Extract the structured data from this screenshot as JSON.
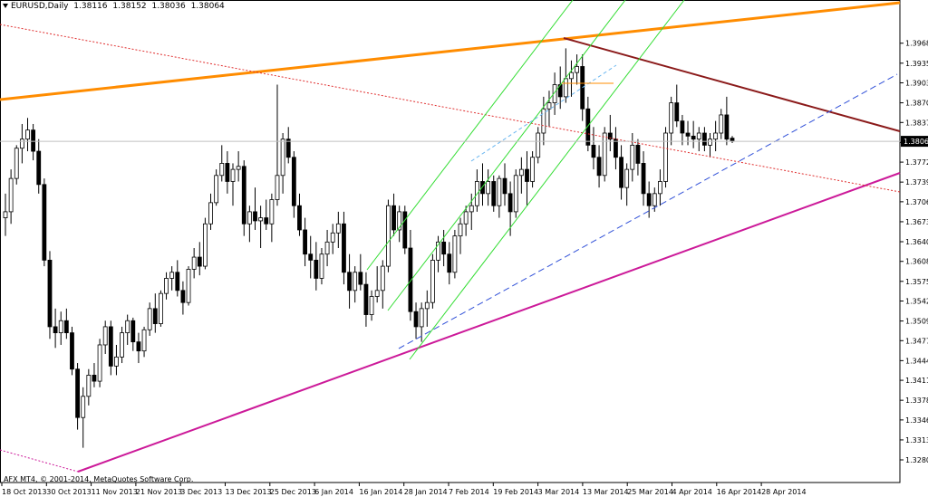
{
  "header": {
    "symbol": "EURUSD,Daily",
    "open": "1.38116",
    "high": "1.38152",
    "low": "1.38036",
    "close": "1.38064"
  },
  "copyright": "AFX MT4, © 2001-2014, MetaQuotes Software Corp.",
  "current_price_label": "1.38064",
  "colors": {
    "bull": "#ffffff",
    "bear": "#000000",
    "trend_orange": "#ff8c00",
    "trend_magenta": "#cc1a99",
    "trend_brown": "#8b1a1a",
    "dotted_red": "#e03030",
    "channel_green": "#33dd33",
    "dashed_blue": "#3050d8"
  },
  "chart_data": {
    "type": "candlestick",
    "symbol": "EURUSD",
    "timeframe": "Daily",
    "ylim": [
      1.328,
      1.3998
    ],
    "grid": false,
    "y_ticks": [
      "1.39685",
      "1.39355",
      "1.39030",
      "1.38700",
      "1.38375",
      "1.38045",
      "1.37720",
      "1.37390",
      "1.37065",
      "1.36735",
      "1.36405",
      "1.36080",
      "1.35750",
      "1.35425",
      "1.35095",
      "1.34770",
      "1.34440",
      "1.34115",
      "1.33785",
      "1.33460",
      "1.33130",
      "1.32800"
    ],
    "x_labels": [
      "18 Oct 2013",
      "30 Oct 2013",
      "11 Nov 2013",
      "21 Nov 2013",
      "3 Dec 2013",
      "13 Dec 2013",
      "25 Dec 2013",
      "6 Jan 2014",
      "16 Jan 2014",
      "28 Jan 2014",
      "7 Feb 2014",
      "19 Feb 2014",
      "3 Mar 2014",
      "13 Mar 2014",
      "25 Mar 2014",
      "4 Apr 2014",
      "16 Apr 2014",
      "28 Apr 2014"
    ],
    "candles_ohlc": [
      [
        1.368,
        1.372,
        1.365,
        1.369
      ],
      [
        1.369,
        1.376,
        1.367,
        1.3745
      ],
      [
        1.3745,
        1.38,
        1.3735,
        1.3795
      ],
      [
        1.3795,
        1.3835,
        1.377,
        1.381
      ],
      [
        1.381,
        1.3845,
        1.379,
        1.3825
      ],
      [
        1.3825,
        1.3835,
        1.3775,
        1.379
      ],
      [
        1.379,
        1.381,
        1.372,
        1.3735
      ],
      [
        1.3735,
        1.3745,
        1.36,
        1.361
      ],
      [
        1.361,
        1.3625,
        1.348,
        1.35
      ],
      [
        1.35,
        1.353,
        1.3465,
        1.349
      ],
      [
        1.349,
        1.3525,
        1.347,
        1.351
      ],
      [
        1.351,
        1.353,
        1.348,
        1.349
      ],
      [
        1.349,
        1.35,
        1.342,
        1.343
      ],
      [
        1.343,
        1.344,
        1.333,
        1.335
      ],
      [
        1.335,
        1.34,
        1.33,
        1.3385
      ],
      [
        1.3385,
        1.343,
        1.337,
        1.342
      ],
      [
        1.342,
        1.344,
        1.34,
        1.341
      ],
      [
        1.341,
        1.348,
        1.34,
        1.347
      ],
      [
        1.347,
        1.351,
        1.3455,
        1.35
      ],
      [
        1.35,
        1.351,
        1.342,
        1.3435
      ],
      [
        1.3435,
        1.347,
        1.342,
        1.345
      ],
      [
        1.345,
        1.35,
        1.344,
        1.349
      ],
      [
        1.349,
        1.352,
        1.347,
        1.351
      ],
      [
        1.351,
        1.3515,
        1.346,
        1.3475
      ],
      [
        1.3475,
        1.349,
        1.344,
        1.346
      ],
      [
        1.346,
        1.35,
        1.345,
        1.3495
      ],
      [
        1.3495,
        1.354,
        1.3485,
        1.353
      ],
      [
        1.353,
        1.3555,
        1.349,
        1.3505
      ],
      [
        1.3505,
        1.356,
        1.35,
        1.3555
      ],
      [
        1.3555,
        1.359,
        1.3545,
        1.358
      ],
      [
        1.358,
        1.36,
        1.356,
        1.359
      ],
      [
        1.359,
        1.361,
        1.355,
        1.356
      ],
      [
        1.356,
        1.3575,
        1.352,
        1.354
      ],
      [
        1.354,
        1.36,
        1.3535,
        1.3595
      ],
      [
        1.3595,
        1.363,
        1.358,
        1.3615
      ],
      [
        1.3615,
        1.364,
        1.3585,
        1.36
      ],
      [
        1.36,
        1.368,
        1.3595,
        1.367
      ],
      [
        1.367,
        1.372,
        1.366,
        1.3705
      ],
      [
        1.3705,
        1.376,
        1.37,
        1.375
      ],
      [
        1.375,
        1.38,
        1.374,
        1.377
      ],
      [
        1.377,
        1.379,
        1.372,
        1.374
      ],
      [
        1.374,
        1.377,
        1.37,
        1.376
      ],
      [
        1.376,
        1.379,
        1.374,
        1.3765
      ],
      [
        1.3765,
        1.3775,
        1.365,
        1.367
      ],
      [
        1.367,
        1.37,
        1.364,
        1.369
      ],
      [
        1.369,
        1.373,
        1.366,
        1.3675
      ],
      [
        1.3675,
        1.37,
        1.363,
        1.368
      ],
      [
        1.368,
        1.371,
        1.366,
        1.367
      ],
      [
        1.367,
        1.372,
        1.364,
        1.371
      ],
      [
        1.371,
        1.39,
        1.37,
        1.375
      ],
      [
        1.375,
        1.382,
        1.372,
        1.381
      ],
      [
        1.381,
        1.383,
        1.377,
        1.378
      ],
      [
        1.378,
        1.379,
        1.368,
        1.37
      ],
      [
        1.37,
        1.372,
        1.365,
        1.366
      ],
      [
        1.366,
        1.368,
        1.36,
        1.362
      ],
      [
        1.362,
        1.365,
        1.358,
        1.361
      ],
      [
        1.361,
        1.364,
        1.356,
        1.358
      ],
      [
        1.358,
        1.363,
        1.357,
        1.362
      ],
      [
        1.362,
        1.366,
        1.36,
        1.364
      ],
      [
        1.364,
        1.367,
        1.362,
        1.3655
      ],
      [
        1.3655,
        1.369,
        1.363,
        1.367
      ],
      [
        1.367,
        1.369,
        1.357,
        1.359
      ],
      [
        1.359,
        1.362,
        1.353,
        1.356
      ],
      [
        1.356,
        1.36,
        1.354,
        1.359
      ],
      [
        1.359,
        1.362,
        1.356,
        1.357
      ],
      [
        1.357,
        1.359,
        1.35,
        1.352
      ],
      [
        1.352,
        1.356,
        1.351,
        1.355
      ],
      [
        1.355,
        1.36,
        1.354,
        1.356
      ],
      [
        1.356,
        1.361,
        1.353,
        1.36
      ],
      [
        1.36,
        1.371,
        1.359,
        1.37
      ],
      [
        1.37,
        1.372,
        1.365,
        1.366
      ],
      [
        1.366,
        1.37,
        1.364,
        1.369
      ],
      [
        1.369,
        1.37,
        1.362,
        1.363
      ],
      [
        1.363,
        1.366,
        1.351,
        1.3525
      ],
      [
        1.3525,
        1.354,
        1.348,
        1.35
      ],
      [
        1.35,
        1.354,
        1.3475,
        1.353
      ],
      [
        1.353,
        1.356,
        1.35,
        1.354
      ],
      [
        1.354,
        1.362,
        1.353,
        1.361
      ],
      [
        1.361,
        1.365,
        1.359,
        1.364
      ],
      [
        1.364,
        1.366,
        1.36,
        1.362
      ],
      [
        1.362,
        1.364,
        1.357,
        1.359
      ],
      [
        1.359,
        1.366,
        1.358,
        1.365
      ],
      [
        1.365,
        1.368,
        1.362,
        1.367
      ],
      [
        1.367,
        1.37,
        1.365,
        1.369
      ],
      [
        1.369,
        1.372,
        1.366,
        1.37
      ],
      [
        1.37,
        1.376,
        1.369,
        1.374
      ],
      [
        1.374,
        1.377,
        1.37,
        1.372
      ],
      [
        1.372,
        1.376,
        1.37,
        1.374
      ],
      [
        1.374,
        1.375,
        1.369,
        1.37
      ],
      [
        1.37,
        1.375,
        1.368,
        1.3745
      ],
      [
        1.3745,
        1.377,
        1.37,
        1.372
      ],
      [
        1.372,
        1.374,
        1.365,
        1.369
      ],
      [
        1.369,
        1.376,
        1.368,
        1.375
      ],
      [
        1.375,
        1.378,
        1.372,
        1.376
      ],
      [
        1.376,
        1.379,
        1.37,
        1.374
      ],
      [
        1.374,
        1.379,
        1.373,
        1.378
      ],
      [
        1.378,
        1.383,
        1.377,
        1.382
      ],
      [
        1.382,
        1.388,
        1.38,
        1.386
      ],
      [
        1.386,
        1.389,
        1.383,
        1.387
      ],
      [
        1.387,
        1.392,
        1.385,
        1.39
      ],
      [
        1.39,
        1.393,
        1.386,
        1.388
      ],
      [
        1.388,
        1.396,
        1.387,
        1.391
      ],
      [
        1.391,
        1.394,
        1.388,
        1.392
      ],
      [
        1.392,
        1.395,
        1.39,
        1.393
      ],
      [
        1.393,
        1.395,
        1.384,
        1.386
      ],
      [
        1.386,
        1.388,
        1.379,
        1.38
      ],
      [
        1.38,
        1.383,
        1.376,
        1.378
      ],
      [
        1.378,
        1.38,
        1.373,
        1.375
      ],
      [
        1.375,
        1.383,
        1.374,
        1.382
      ],
      [
        1.382,
        1.385,
        1.379,
        1.381
      ],
      [
        1.381,
        1.383,
        1.376,
        1.378
      ],
      [
        1.378,
        1.38,
        1.371,
        1.373
      ],
      [
        1.373,
        1.377,
        1.37,
        1.376
      ],
      [
        1.376,
        1.382,
        1.374,
        1.38
      ],
      [
        1.38,
        1.381,
        1.375,
        1.377
      ],
      [
        1.377,
        1.379,
        1.37,
        1.372
      ],
      [
        1.372,
        1.374,
        1.368,
        1.37
      ],
      [
        1.37,
        1.373,
        1.369,
        1.372
      ],
      [
        1.372,
        1.376,
        1.37,
        1.374
      ],
      [
        1.374,
        1.383,
        1.373,
        1.382
      ],
      [
        1.382,
        1.388,
        1.38,
        1.387
      ],
      [
        1.387,
        1.39,
        1.383,
        1.384
      ],
      [
        1.384,
        1.385,
        1.38,
        1.382
      ],
      [
        1.382,
        1.384,
        1.38,
        1.3815
      ],
      [
        1.3815,
        1.384,
        1.3795,
        1.381
      ],
      [
        1.381,
        1.383,
        1.379,
        1.382
      ],
      [
        1.382,
        1.383,
        1.379,
        1.38
      ],
      [
        1.38,
        1.382,
        1.378,
        1.381
      ],
      [
        1.381,
        1.384,
        1.379,
        1.382
      ],
      [
        1.382,
        1.386,
        1.381,
        1.385
      ],
      [
        1.385,
        1.388,
        1.38,
        1.381
      ],
      [
        1.38116,
        1.38152,
        1.38036,
        1.38064
      ]
    ],
    "objects": [
      {
        "kind": "trendline",
        "color": "orange",
        "from": [
          "18 Oct 2013",
          1.3855
        ],
        "to": [
          "28 Apr 2014",
          1.3985
        ]
      },
      {
        "kind": "trendline",
        "color": "magenta",
        "from": [
          "4 Nov 2013",
          1.329
        ],
        "to": [
          "28 Apr 2014",
          1.3735
        ]
      },
      {
        "kind": "trendline",
        "color": "brown",
        "from": [
          "13 Mar 2014",
          1.3945
        ],
        "to": [
          "28 Apr 2014",
          1.3805
        ]
      },
      {
        "kind": "trendline-dotted",
        "color": "red",
        "from": [
          "18 Oct 2013",
          1.396
        ],
        "to": [
          "28 Apr 2014",
          1.372
        ]
      },
      {
        "kind": "trendline-dashed",
        "color": "blue",
        "from": [
          "28 Jan 2014",
          1.3478
        ],
        "to": [
          "28 Apr 2014",
          1.388
        ]
      },
      {
        "kind": "channel",
        "color": "green",
        "parallel_lines": 3
      }
    ],
    "current_price": 1.38064
  }
}
